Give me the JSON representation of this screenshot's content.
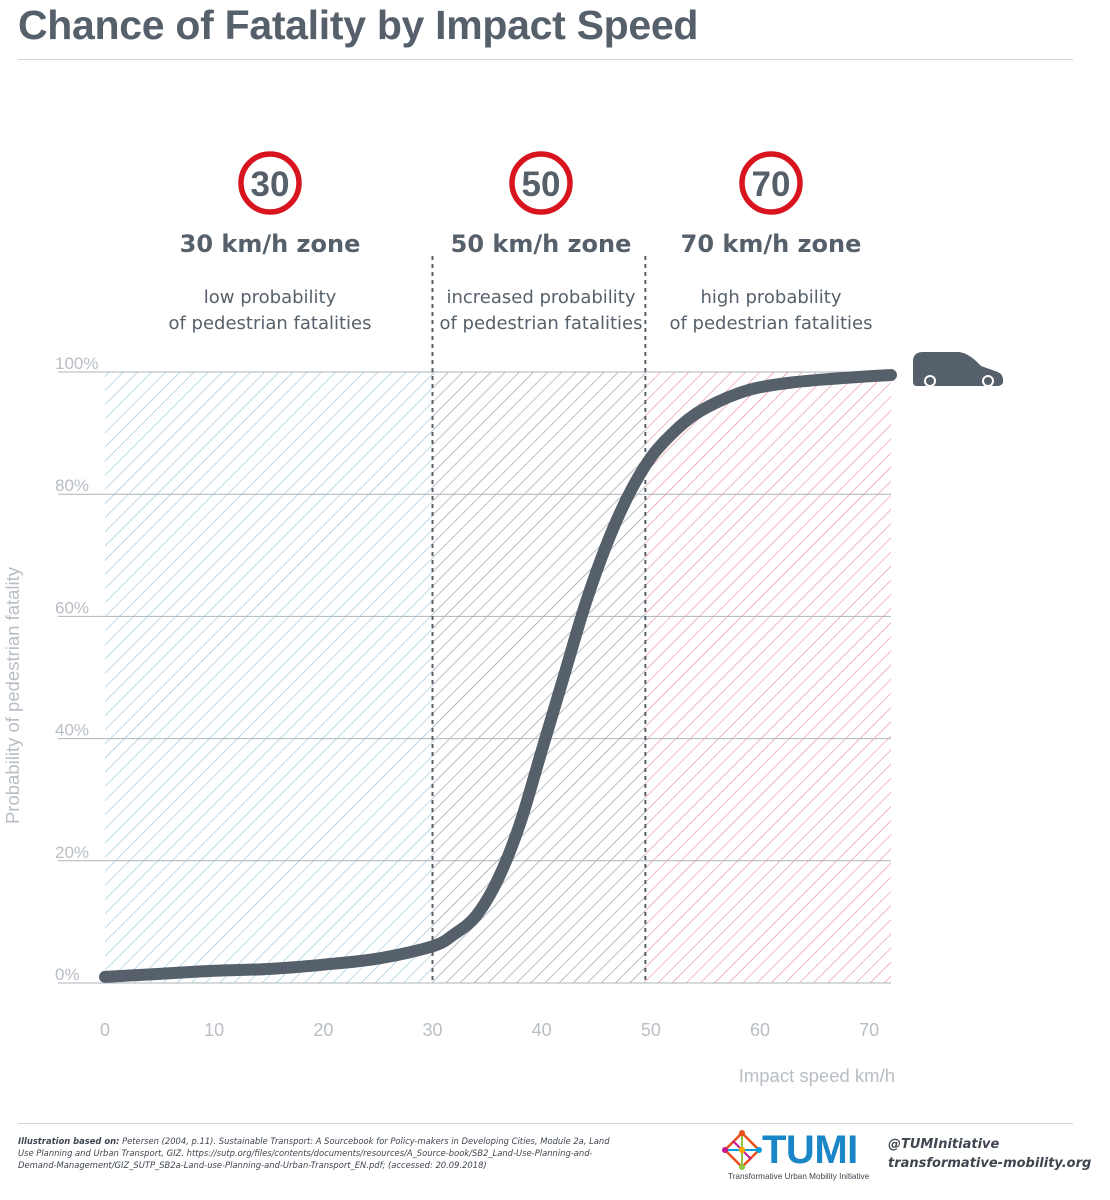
{
  "page": {
    "title": "Chance of Fatality by Impact Speed"
  },
  "chart_data": {
    "type": "line",
    "title": "Chance of Fatality by Impact Speed",
    "xlabel": "Impact speed km/h",
    "ylabel": "Probability of pedestrian fatality",
    "xlim": [
      0,
      72
    ],
    "ylim": [
      0,
      100
    ],
    "x_ticks": [
      "0",
      "10",
      "20",
      "30",
      "40",
      "50",
      "60",
      "70"
    ],
    "x_tick_values": [
      0,
      10,
      20,
      30,
      40,
      50,
      60,
      70
    ],
    "y_ticks": [
      "0%",
      "20%",
      "40%",
      "60%",
      "80%",
      "100%"
    ],
    "y_tick_values": [
      0,
      20,
      40,
      60,
      80,
      100
    ],
    "grid": "horizontal",
    "series": [
      {
        "x": [
          0,
          5,
          10,
          15,
          20,
          25,
          30,
          32,
          34,
          36,
          38,
          40,
          42,
          44,
          46,
          48,
          50,
          52,
          54,
          56,
          58,
          60,
          63,
          66,
          70,
          72
        ],
        "y": [
          1,
          1.5,
          2,
          2.3,
          3,
          4,
          6,
          8,
          11,
          17,
          26,
          38,
          50,
          62,
          72,
          80,
          86,
          90,
          93,
          95,
          96.5,
          97.5,
          98.3,
          98.8,
          99.3,
          99.5
        ],
        "color": "#56606a"
      }
    ],
    "zones": [
      {
        "limit": "30",
        "title": "30 km/h zone",
        "desc_line1": "low probability",
        "desc_line2": "of pedestrian fatalities",
        "x_start": 0,
        "x_end": 30,
        "hatch_color": "#8ec3dc"
      },
      {
        "limit": "50",
        "title": "50 km/h zone",
        "desc_line1": "increased probability",
        "desc_line2": "of pedestrian fatalities",
        "x_start": 30,
        "x_end": 49.5,
        "hatch_color": "#8e959c"
      },
      {
        "limit": "70",
        "title": "70 km/h zone",
        "desc_line1": "high probability",
        "desc_line2": "of pedestrian fatalities",
        "x_start": 49.5,
        "x_end": 72,
        "hatch_color": "#e68a98"
      }
    ],
    "colors": {
      "curve": "#56606a",
      "sign_ring": "#d8141f",
      "grid": "#aeb4ba",
      "axis_text": "#b8bec4",
      "zone_divider": "#56606a",
      "car": "#56606a"
    },
    "icons": {
      "end_marker": "car-icon"
    }
  },
  "footer": {
    "source_label": "Illustration based on:",
    "source_text": "Petersen (2004, p.11). Sustainable Transport: A Sourcebook for Policy-makers in Developing Cities, Module 2a, Land Use Planning and Urban Transport, GIZ. https://sutp.org/files/contents/documents/resources/A_Source-book/SB2_Land-Use-Planning-and-Demand-Management/GIZ_SUTP_SB2a-Land-use-Planning-and-Urban-Transport_EN.pdf; (accessed: 20.09.2018)",
    "logo_word": "TUMI",
    "logo_subtitle": "Transformative Urban Mobility Initiative",
    "logo_icon": "network-diamond-icon",
    "twitter": "@TUMInitiative",
    "website": "transformative-mobility.org"
  }
}
